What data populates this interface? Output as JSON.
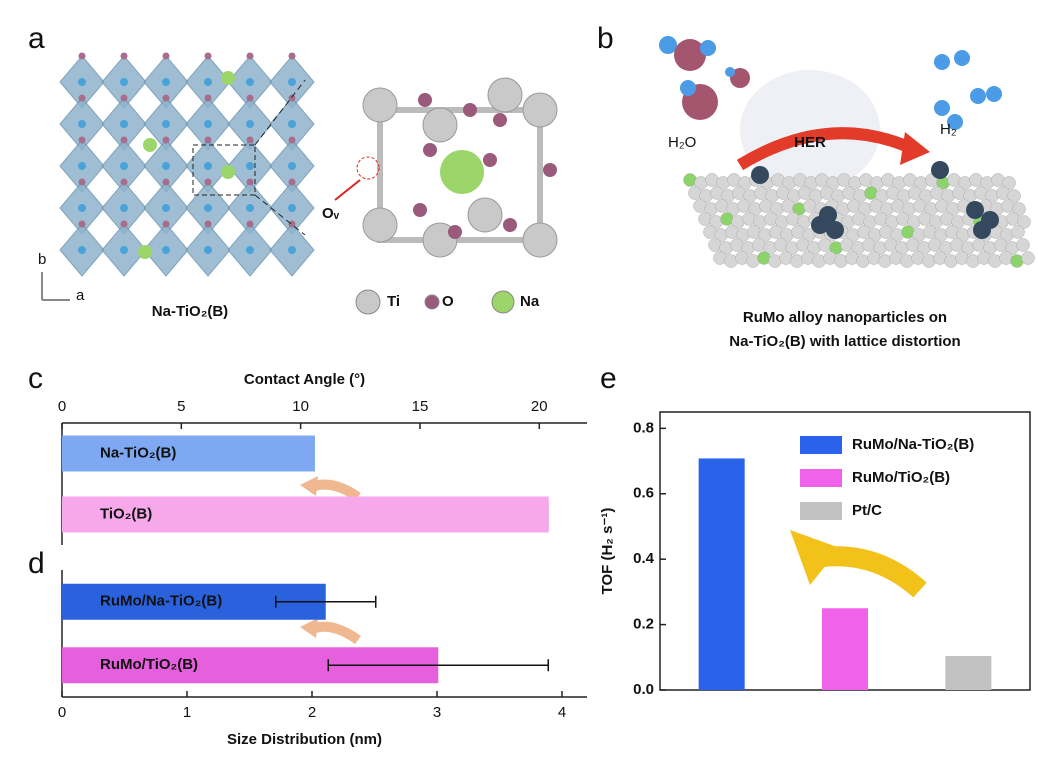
{
  "panels": {
    "a": {
      "label": "a",
      "caption": "Na-TiO₂(B)",
      "vacancy": "Oᵥ",
      "legend": [
        "Ti",
        "O",
        "Na"
      ],
      "axes": [
        "b",
        "a"
      ]
    },
    "b": {
      "label": "b",
      "reactant": "H₂O",
      "reaction": "HER",
      "product": "H₂",
      "caption": [
        "RuMo alloy nanoparticles on",
        "Na-TiO₂(B) with lattice distortion"
      ]
    }
  },
  "chart_data": [
    {
      "type": "bar",
      "label": "c",
      "orientation": "horizontal",
      "xaxis_position": "top",
      "xlabel": "Contact Angle (°)",
      "categories": [
        "Na-TiO₂(B)",
        "TiO₂(B)"
      ],
      "values": [
        10.6,
        20.4
      ],
      "colors": [
        "#7ea8f2",
        "#f6a8ea"
      ],
      "label_color": "#111111",
      "xlim": [
        0,
        22
      ],
      "xticks": [
        0,
        5,
        10,
        15,
        20
      ]
    },
    {
      "type": "bar",
      "label": "d",
      "orientation": "horizontal",
      "xaxis_position": "bottom",
      "xlabel": "Size Distribution (nm)",
      "categories": [
        "RuMo/Na-TiO₂(B)",
        "RuMo/TiO₂(B)"
      ],
      "values": [
        2.11,
        3.01
      ],
      "errors": [
        0.4,
        0.88
      ],
      "colors": [
        "#2a62de",
        "#e660de"
      ],
      "label_color": "#ffffff",
      "xlim": [
        0,
        4.2
      ],
      "xticks": [
        0,
        1,
        2,
        3,
        4
      ]
    },
    {
      "type": "bar",
      "label": "e",
      "orientation": "vertical",
      "ylabel": "TOF (H₂ s⁻¹)",
      "categories": [
        "RuMo/Na-TiO₂(B)",
        "RuMo/TiO₂(B)",
        "Pt/C"
      ],
      "values": [
        0.708,
        0.25,
        0.104
      ],
      "colors": [
        "#2a62eb",
        "#f062ea",
        "#c2c2c2"
      ],
      "ylim": [
        0,
        0.85
      ],
      "yticks": [
        {
          "value": 0,
          "label": "0.0"
        },
        0.2,
        0.4,
        0.6,
        0.8
      ]
    }
  ]
}
